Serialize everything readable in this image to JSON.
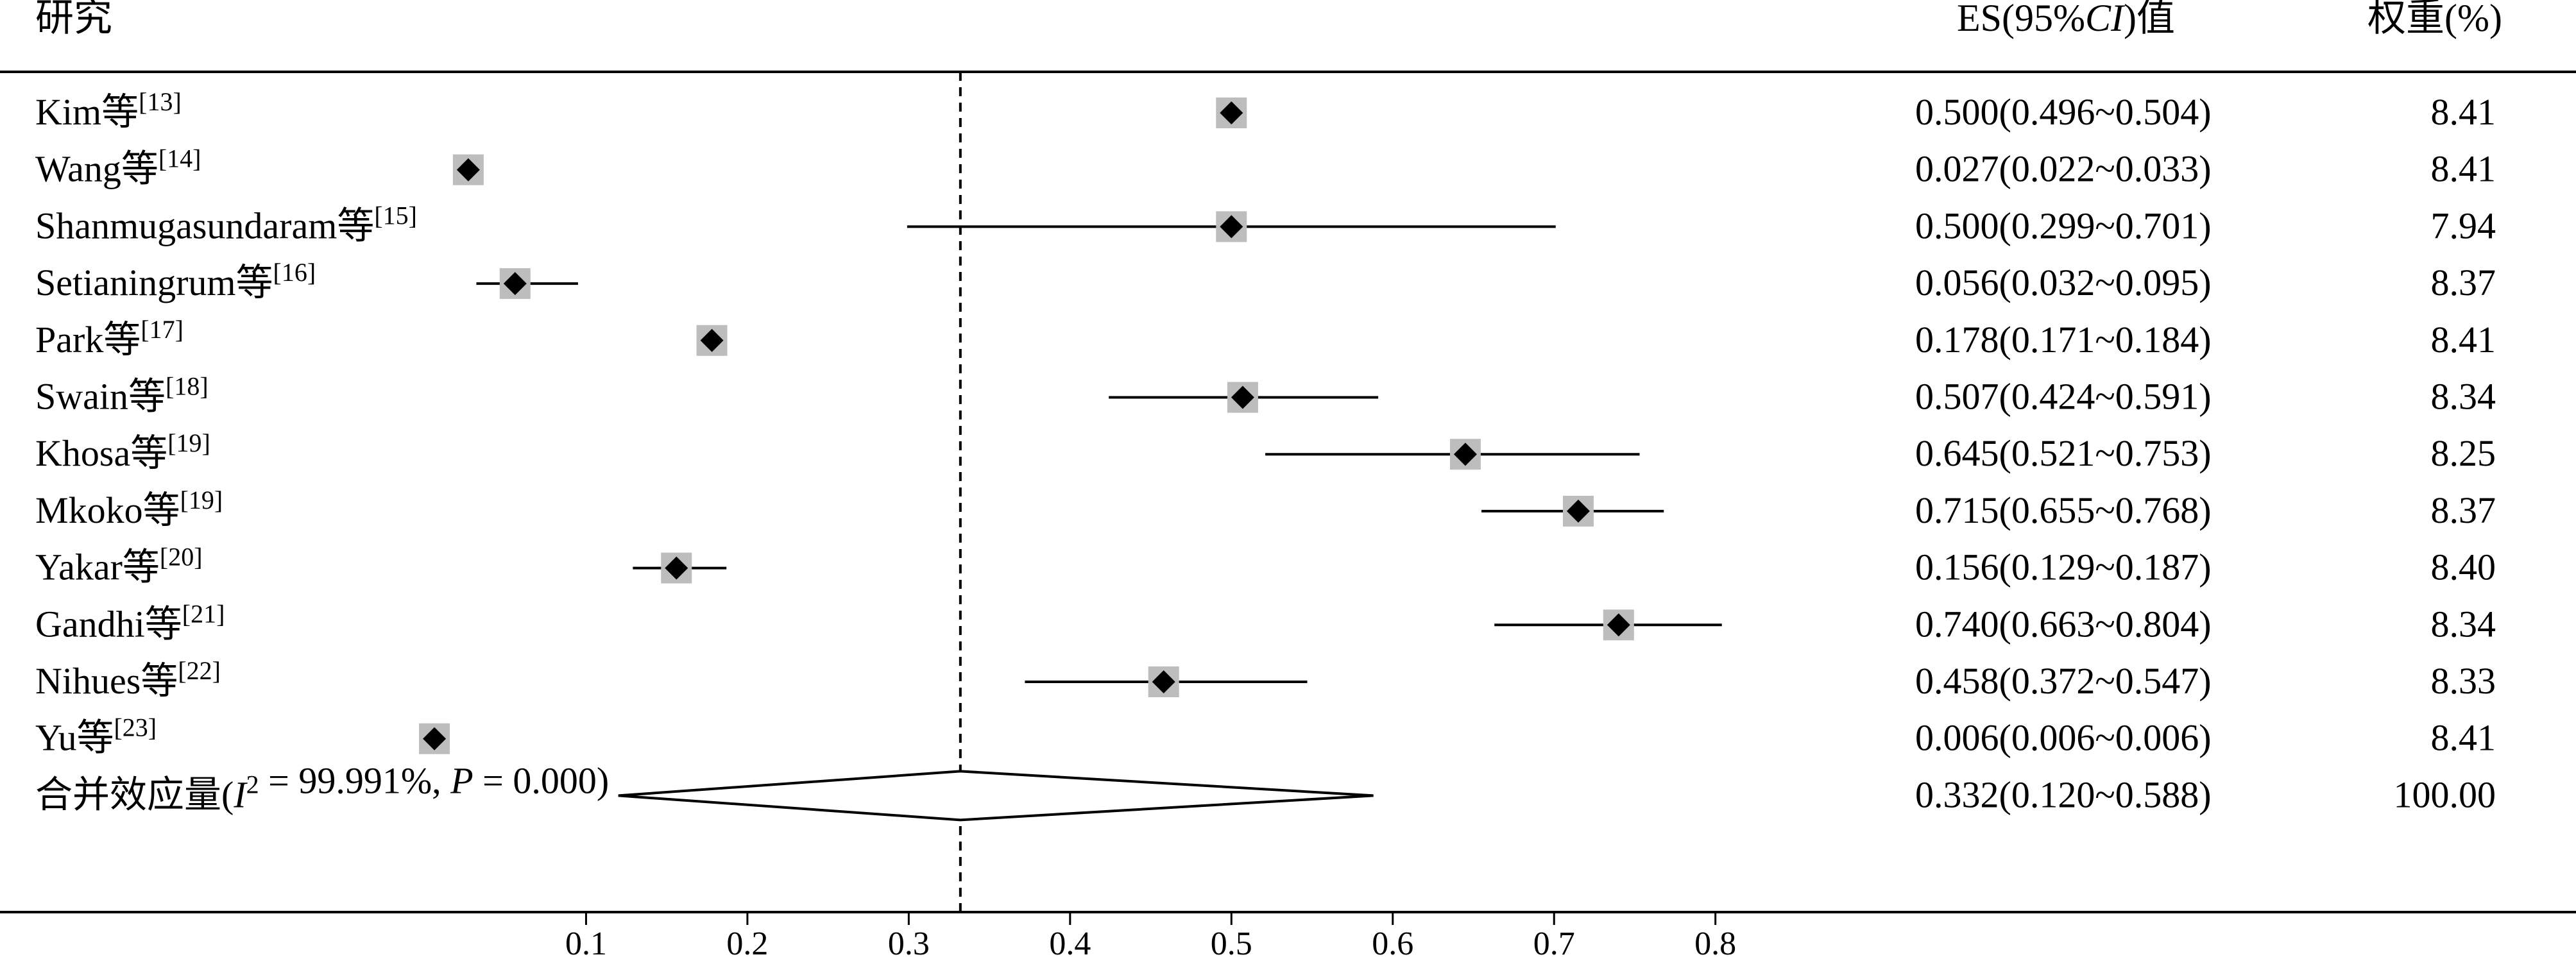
{
  "chart_data": {
    "type": "forest",
    "headers": {
      "study": "研究",
      "es": "ES(95%",
      "es_ci": "CI",
      "es_suffix": ")值",
      "weight": "权重(%)"
    },
    "studies": [
      {
        "name": "Kim等",
        "ref": "[13]",
        "es": 0.5,
        "lo": 0.496,
        "hi": 0.504,
        "ci_text": "0.500(0.496~0.504)",
        "weight": "8.41"
      },
      {
        "name": "Wang等",
        "ref": "[14]",
        "es": 0.027,
        "lo": 0.022,
        "hi": 0.033,
        "ci_text": "0.027(0.022~0.033)",
        "weight": "8.41"
      },
      {
        "name": "Shanmugasundaram等",
        "ref": "[15]",
        "es": 0.5,
        "lo": 0.299,
        "hi": 0.701,
        "ci_text": "0.500(0.299~0.701)",
        "weight": "7.94"
      },
      {
        "name": "Setianingrum等",
        "ref": "[16]",
        "es": 0.056,
        "lo": 0.032,
        "hi": 0.095,
        "ci_text": "0.056(0.032~0.095)",
        "weight": "8.37"
      },
      {
        "name": "Park等",
        "ref": "[17]",
        "es": 0.178,
        "lo": 0.171,
        "hi": 0.184,
        "ci_text": "0.178(0.171~0.184)",
        "weight": "8.41"
      },
      {
        "name": "Swain等",
        "ref": "[18]",
        "es": 0.507,
        "lo": 0.424,
        "hi": 0.591,
        "ci_text": "0.507(0.424~0.591)",
        "weight": "8.34"
      },
      {
        "name": "Khosa等",
        "ref": "[19]",
        "es": 0.645,
        "lo": 0.521,
        "hi": 0.753,
        "ci_text": "0.645(0.521~0.753)",
        "weight": "8.25"
      },
      {
        "name": "Mkoko等",
        "ref": "[19]",
        "es": 0.715,
        "lo": 0.655,
        "hi": 0.768,
        "ci_text": "0.715(0.655~0.768)",
        "weight": "8.37"
      },
      {
        "name": "Yakar等",
        "ref": "[20]",
        "es": 0.156,
        "lo": 0.129,
        "hi": 0.187,
        "ci_text": "0.156(0.129~0.187)",
        "weight": "8.40"
      },
      {
        "name": "Gandhi等",
        "ref": "[21]",
        "es": 0.74,
        "lo": 0.663,
        "hi": 0.804,
        "ci_text": "0.740(0.663~0.804)",
        "weight": "8.34"
      },
      {
        "name": "Nihues等",
        "ref": "[22]",
        "es": 0.458,
        "lo": 0.372,
        "hi": 0.547,
        "ci_text": "0.458(0.372~0.547)",
        "weight": "8.33"
      },
      {
        "name": "Yu等",
        "ref": "[23]",
        "es": 0.006,
        "lo": 0.006,
        "hi": 0.006,
        "ci_text": "0.006(0.006~0.006)",
        "weight": "8.41"
      }
    ],
    "pooled": {
      "label_prefix": "合并效应量(",
      "label_i": "I",
      "label_sup": "2",
      "label_mid": " = 99.991%, ",
      "label_p": "P",
      "label_end": " = 0.000)",
      "es": 0.332,
      "lo": 0.12,
      "hi": 0.588,
      "ci_text": "0.332(0.120~0.588)",
      "weight": "100.00"
    },
    "reference_line": 0.332,
    "x_ticks": [
      0.1,
      0.2,
      0.3,
      0.4,
      0.5,
      0.6,
      0.7,
      0.8
    ],
    "xlim": [
      0.0,
      0.8
    ],
    "marker_color": "#000000",
    "weight_box_color": "#bdbdbd"
  }
}
